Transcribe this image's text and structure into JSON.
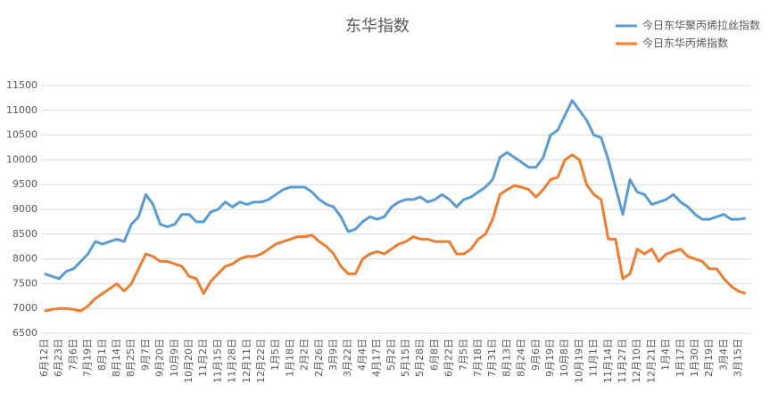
{
  "chart_data": {
    "type": "line",
    "title": "东华指数",
    "categories": [
      "6月12日",
      null,
      "6月23日",
      null,
      "7月6日",
      null,
      "7月19日",
      null,
      "8月1日",
      null,
      "8月14日",
      null,
      "8月25日",
      null,
      "9月7日",
      null,
      "9月20日",
      null,
      "10月9日",
      null,
      "10月20日",
      null,
      "11月2日",
      null,
      "11月15日",
      null,
      "11月28日",
      null,
      "12月11日",
      null,
      "12月22日",
      null,
      "1月5日",
      null,
      "1月18日",
      null,
      "2月2日",
      null,
      "2月26日",
      null,
      "3月9日",
      null,
      "3月22日",
      null,
      "4月4日",
      null,
      "4月17日",
      null,
      "5月2日",
      null,
      "5月15日",
      null,
      "5月28日",
      null,
      "6月8日",
      null,
      "6月22日",
      null,
      "7月5日",
      null,
      "7月18日",
      null,
      "7月31日",
      null,
      "8月13日",
      null,
      "8月24日",
      null,
      "9月6日",
      null,
      "9月19日",
      null,
      "10月8日",
      null,
      "10月19日",
      null,
      "11月1日",
      null,
      "11月14日",
      null,
      "11月27日",
      null,
      "12月10日",
      null,
      "12月21日",
      null,
      "1月4日",
      null,
      "1月17日",
      null,
      "1月30日",
      null,
      "2月19日",
      null,
      "3月4日",
      null,
      "3月15日",
      null
    ],
    "series": [
      {
        "name": "今日东华聚丙烯拉丝指数",
        "color": "#5b9bd5",
        "values": [
          7700,
          7650,
          7600,
          7750,
          7800,
          7950,
          8100,
          8350,
          8300,
          8350,
          8400,
          8350,
          8700,
          8850,
          9300,
          9100,
          8700,
          8650,
          8700,
          8900,
          8900,
          8750,
          8750,
          8950,
          9000,
          9150,
          9050,
          9150,
          9100,
          9150,
          9150,
          9200,
          9300,
          9400,
          9450,
          9450,
          9450,
          9350,
          9200,
          9100,
          9050,
          8850,
          8550,
          8600,
          8750,
          8850,
          8800,
          8850,
          9050,
          9150,
          9200,
          9200,
          9250,
          9150,
          9200,
          9300,
          9200,
          9050,
          9200,
          9250,
          9350,
          9450,
          9600,
          10050,
          10150,
          10050,
          9950,
          9850,
          9850,
          10050,
          10500,
          10600,
          10900,
          11200,
          11000,
          10800,
          10500,
          10450,
          10000,
          9450,
          8900,
          9600,
          9350,
          9300,
          9100,
          9150,
          9200,
          9300,
          9150,
          9050,
          8900,
          8800,
          8800,
          8850,
          8900,
          8800,
          8800,
          8820
        ]
      },
      {
        "name": "今日东华丙烯指数",
        "color": "#ed7d31",
        "values": [
          6950,
          6980,
          7000,
          7000,
          6980,
          6950,
          7050,
          7200,
          7300,
          7400,
          7500,
          7350,
          7500,
          7800,
          8100,
          8050,
          7950,
          7950,
          7900,
          7850,
          7650,
          7600,
          7300,
          7550,
          7700,
          7850,
          7900,
          8000,
          8050,
          8050,
          8100,
          8200,
          8300,
          8350,
          8400,
          8450,
          8450,
          8480,
          8350,
          8250,
          8100,
          7850,
          7700,
          7700,
          8000,
          8100,
          8150,
          8100,
          8200,
          8300,
          8350,
          8450,
          8400,
          8400,
          8350,
          8350,
          8350,
          8100,
          8100,
          8200,
          8400,
          8500,
          8800,
          9300,
          9400,
          9480,
          9450,
          9400,
          9250,
          9400,
          9600,
          9650,
          10000,
          10100,
          10000,
          9500,
          9300,
          9200,
          8400,
          8400,
          7600,
          7700,
          8200,
          8100,
          8200,
          7950,
          8100,
          8150,
          8200,
          8050,
          8000,
          7950,
          7800,
          7800,
          7600,
          7450,
          7350,
          7300
        ]
      }
    ],
    "ylim": [
      6500,
      11500
    ],
    "yticks": [
      6500,
      7000,
      7500,
      8000,
      8500,
      9000,
      9500,
      10000,
      10500,
      11000,
      11500
    ],
    "grid": true,
    "legend": "top-right"
  }
}
